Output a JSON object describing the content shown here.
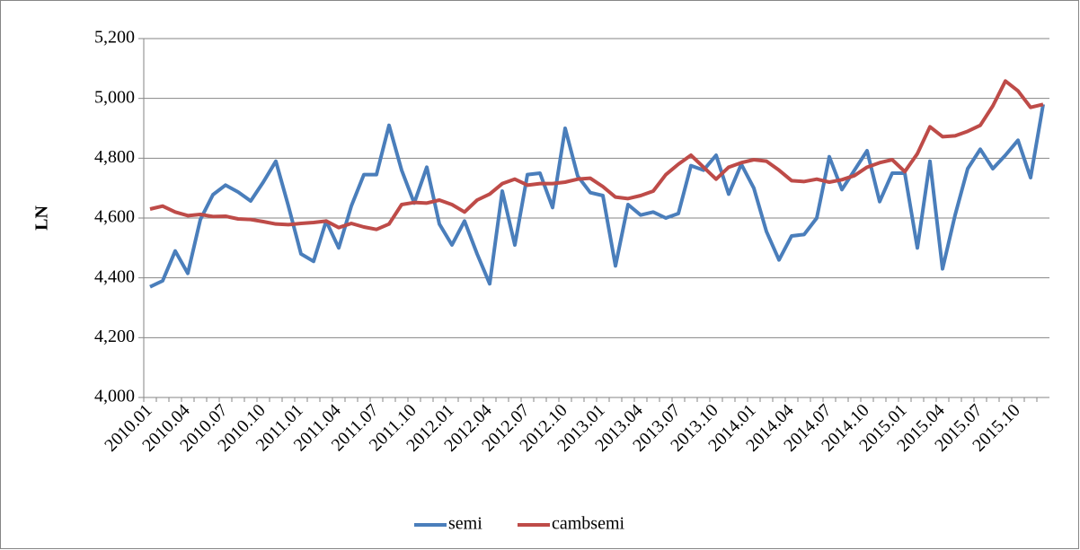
{
  "chart_data": {
    "type": "line",
    "ylabel": "LN",
    "categories": [
      "2010.01",
      null,
      null,
      "2010.04",
      null,
      null,
      "2010.07",
      null,
      null,
      "2010.10",
      null,
      null,
      "2011.01",
      null,
      null,
      "2011.04",
      null,
      null,
      "2011.07",
      null,
      null,
      "2011.10",
      null,
      null,
      "2012.01",
      null,
      null,
      "2012.04",
      null,
      null,
      "2012.07",
      null,
      null,
      "2012.10",
      null,
      null,
      "2013.01",
      null,
      null,
      "2013.04",
      null,
      null,
      "2013.07",
      null,
      null,
      "2013.10",
      null,
      null,
      "2014.01",
      null,
      null,
      "2014.04",
      null,
      null,
      "2014.07",
      null,
      null,
      "2014.10",
      null,
      null,
      "2015.01",
      null,
      null,
      "2015.04",
      null,
      null,
      "2015.07",
      null,
      null,
      "2015.10",
      null,
      null
    ],
    "series": [
      {
        "name": "semi",
        "color": "#4a7ebb",
        "values": [
          4370,
          4390,
          4490,
          4415,
          4595,
          4678,
          4710,
          4687,
          4657,
          4720,
          4790,
          4640,
          4480,
          4455,
          4590,
          4500,
          4640,
          4745,
          4745,
          4910,
          4760,
          4650,
          4770,
          4580,
          4510,
          4590,
          4480,
          4380,
          4690,
          4510,
          4745,
          4750,
          4635,
          4900,
          4740,
          4685,
          4675,
          4440,
          4645,
          4610,
          4620,
          4600,
          4615,
          4775,
          4760,
          4810,
          4680,
          4780,
          4700,
          4555,
          4460,
          4540,
          4545,
          4600,
          4805,
          4695,
          4760,
          4825,
          4655,
          4750,
          4750,
          4500,
          4790,
          4430,
          4610,
          4765,
          4830,
          4765,
          4810,
          4860,
          4735,
          4980
        ]
      },
      {
        "name": "cambsemi",
        "color": "#be4b48",
        "values": [
          4630,
          4640,
          4620,
          4608,
          4612,
          4605,
          4606,
          4597,
          4595,
          4588,
          4580,
          4578,
          4582,
          4585,
          4590,
          4568,
          4582,
          4570,
          4562,
          4580,
          4645,
          4652,
          4650,
          4660,
          4645,
          4620,
          4660,
          4680,
          4715,
          4730,
          4710,
          4715,
          4715,
          4720,
          4730,
          4733,
          4705,
          4670,
          4665,
          4675,
          4690,
          4745,
          4780,
          4810,
          4770,
          4730,
          4770,
          4785,
          4795,
          4790,
          4760,
          4725,
          4722,
          4730,
          4720,
          4728,
          4742,
          4770,
          4785,
          4795,
          4755,
          4815,
          4905,
          4872,
          4875,
          4890,
          4910,
          4975,
          5058,
          5025,
          4970,
          4980
        ]
      }
    ],
    "ylim": [
      4000,
      5200
    ],
    "yticks": [
      {
        "value": 4000,
        "label": "4,000"
      },
      {
        "value": 4200,
        "label": "4,200"
      },
      {
        "value": 4400,
        "label": "4,400"
      },
      {
        "value": 4600,
        "label": "4,600"
      },
      {
        "value": 4800,
        "label": "4,800"
      },
      {
        "value": 5000,
        "label": "5,000"
      },
      {
        "value": 5200,
        "label": "5,200"
      }
    ],
    "grid": true,
    "legend": "bottom"
  }
}
